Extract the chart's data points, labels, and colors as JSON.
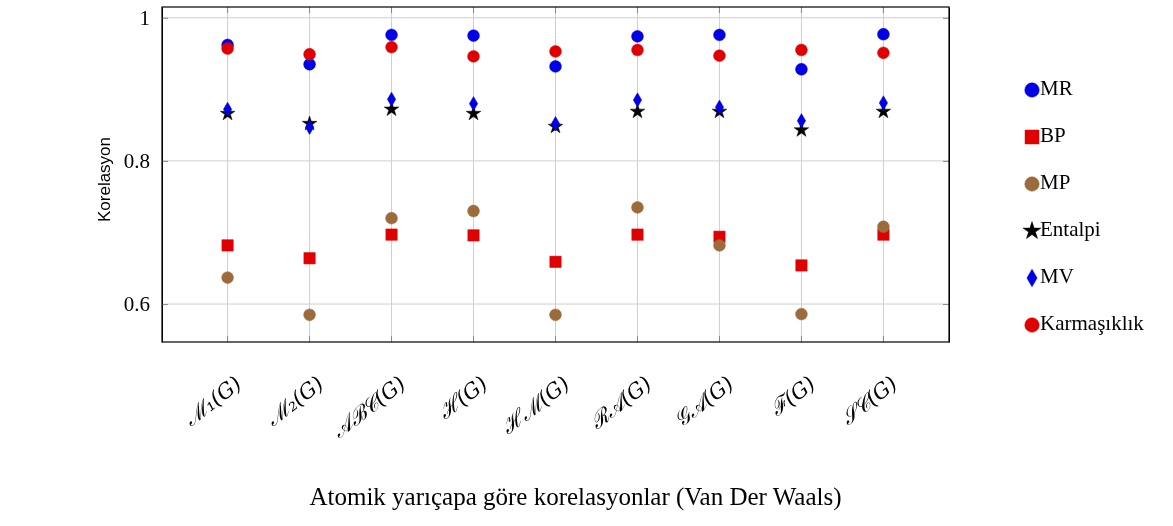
{
  "chart_data": {
    "type": "scatter",
    "xlabel": "Atomik yarıçapa göre korelasyonlar (Van Der Waals)",
    "ylabel": "Korelasyon",
    "categories": [
      "ℳ₁(G)",
      "ℳ₂(G)",
      "𝒜ℬ𝒞(G)",
      "ℋ(G)",
      "ℋℳ(𝐺)",
      "ℛ𝒜(G)",
      "𝒢𝒜(G)",
      "ℱ(G)",
      "𝒮𝒞(𝐺)"
    ],
    "ylim": [
      0.547,
      1.015
    ],
    "yticks": [
      0.6,
      0.8,
      1
    ],
    "grid": true,
    "legend": "right",
    "series": [
      {
        "name": "MR",
        "color": "#0000e6",
        "marker": "circle",
        "values": [
          0.962,
          0.935,
          0.976,
          0.975,
          0.932,
          0.974,
          0.976,
          0.928,
          0.977
        ]
      },
      {
        "name": "BP",
        "color": "#e00000",
        "marker": "square",
        "values": [
          0.682,
          0.664,
          0.697,
          0.696,
          0.659,
          0.697,
          0.694,
          0.654,
          0.697
        ]
      },
      {
        "name": "MP",
        "color": "#9c6b3c",
        "marker": "circle",
        "values": [
          0.637,
          0.585,
          0.72,
          0.73,
          0.585,
          0.735,
          0.682,
          0.586,
          0.708
        ]
      },
      {
        "name": "Entalpi",
        "color": "#000000",
        "marker": "star",
        "values": [
          0.866,
          0.852,
          0.872,
          0.866,
          0.848,
          0.869,
          0.869,
          0.843,
          0.869
        ]
      },
      {
        "name": "MV",
        "color": "#0000e6",
        "marker": "diamond",
        "values": [
          0.872,
          0.847,
          0.886,
          0.88,
          0.852,
          0.885,
          0.875,
          0.856,
          0.881
        ]
      },
      {
        "name": "Karmaşıklık",
        "color": "#e00000",
        "marker": "circle",
        "values": [
          0.957,
          0.949,
          0.959,
          0.946,
          0.953,
          0.955,
          0.947,
          0.955,
          0.951
        ]
      }
    ]
  }
}
